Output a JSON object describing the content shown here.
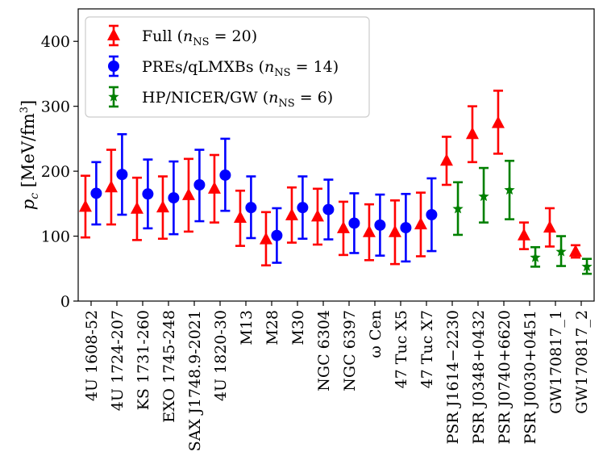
{
  "chart_data": {
    "type": "scatter",
    "ylabel": "p_c [MeV/fm³]",
    "ylabel_parts": {
      "symbol": "p",
      "subscript": "c",
      "unit": " [MeV/fm",
      "sup": "3",
      "close": "]"
    },
    "ylim": [
      0,
      450
    ],
    "yticks": [
      0,
      100,
      200,
      300,
      400
    ],
    "categories": [
      "4U 1608-52",
      "4U 1724-207",
      "KS 1731-260",
      "EXO 1745-248",
      "SAX J1748.9-2021",
      "4U 1820-30",
      "M13",
      "M28",
      "M30",
      "NGC 6304",
      "NGC 6397",
      "ω Cen",
      "47 Tuc X5",
      "47 Tuc X7",
      "PSR J1614−2230",
      "PSR J0348+0432",
      "PSR J0740+6620",
      "PSR J0030+0451",
      "GW170817_1",
      "GW170817_2"
    ],
    "legend_position": "upper left",
    "series": [
      {
        "name": "Full (n_NS = 20)",
        "legend": {
          "main": "Full (",
          "italic": "n",
          "sub": "NS",
          "rest": " = 20)"
        },
        "color": "#ff0000",
        "marker": "triangle",
        "offset": -0.22,
        "points": [
          {
            "i": 0,
            "y": 145,
            "lo": 98,
            "hi": 193
          },
          {
            "i": 1,
            "y": 175,
            "lo": 118,
            "hi": 233
          },
          {
            "i": 2,
            "y": 142,
            "lo": 94,
            "hi": 190
          },
          {
            "i": 3,
            "y": 144,
            "lo": 96,
            "hi": 192
          },
          {
            "i": 4,
            "y": 163,
            "lo": 107,
            "hi": 219
          },
          {
            "i": 5,
            "y": 173,
            "lo": 121,
            "hi": 225
          },
          {
            "i": 6,
            "y": 128,
            "lo": 85,
            "hi": 170
          },
          {
            "i": 7,
            "y": 95,
            "lo": 55,
            "hi": 137
          },
          {
            "i": 8,
            "y": 132,
            "lo": 90,
            "hi": 175
          },
          {
            "i": 9,
            "y": 130,
            "lo": 87,
            "hi": 173
          },
          {
            "i": 10,
            "y": 112,
            "lo": 71,
            "hi": 153
          },
          {
            "i": 11,
            "y": 106,
            "lo": 63,
            "hi": 149
          },
          {
            "i": 12,
            "y": 106,
            "lo": 57,
            "hi": 155
          },
          {
            "i": 13,
            "y": 118,
            "lo": 69,
            "hi": 167
          },
          {
            "i": 14,
            "y": 216,
            "lo": 179,
            "hi": 253
          },
          {
            "i": 15,
            "y": 257,
            "lo": 214,
            "hi": 300
          },
          {
            "i": 16,
            "y": 274,
            "lo": 227,
            "hi": 324
          },
          {
            "i": 17,
            "y": 101,
            "lo": 80,
            "hi": 121
          },
          {
            "i": 18,
            "y": 113,
            "lo": 84,
            "hi": 143
          },
          {
            "i": 19,
            "y": 76,
            "lo": 67,
            "hi": 86
          }
        ]
      },
      {
        "name": "PREs/qLMXBs (n_NS = 14)",
        "legend": {
          "main": "PREs/qLMXBs (",
          "italic": "n",
          "sub": "NS",
          "rest": " = 14)"
        },
        "color": "#0000ff",
        "marker": "circle",
        "offset": 0.2,
        "points": [
          {
            "i": 0,
            "y": 166,
            "lo": 118,
            "hi": 214
          },
          {
            "i": 1,
            "y": 195,
            "lo": 133,
            "hi": 257
          },
          {
            "i": 2,
            "y": 165,
            "lo": 112,
            "hi": 218
          },
          {
            "i": 3,
            "y": 159,
            "lo": 103,
            "hi": 215
          },
          {
            "i": 4,
            "y": 179,
            "lo": 123,
            "hi": 233
          },
          {
            "i": 5,
            "y": 194,
            "lo": 139,
            "hi": 250
          },
          {
            "i": 6,
            "y": 144,
            "lo": 97,
            "hi": 192
          },
          {
            "i": 7,
            "y": 101,
            "lo": 59,
            "hi": 143
          },
          {
            "i": 8,
            "y": 144,
            "lo": 96,
            "hi": 192
          },
          {
            "i": 9,
            "y": 141,
            "lo": 95,
            "hi": 187
          },
          {
            "i": 10,
            "y": 120,
            "lo": 74,
            "hi": 166
          },
          {
            "i": 11,
            "y": 117,
            "lo": 70,
            "hi": 164
          },
          {
            "i": 12,
            "y": 113,
            "lo": 61,
            "hi": 165
          },
          {
            "i": 13,
            "y": 133,
            "lo": 77,
            "hi": 189
          }
        ]
      },
      {
        "name": "HP/NICER/GW (n_NS = 6)",
        "legend": {
          "main": "HP/NICER/GW (",
          "italic": "n",
          "sub": "NS",
          "rest": " = 6)"
        },
        "color": "#008000",
        "marker": "star",
        "offset": 0.22,
        "points": [
          {
            "i": 14,
            "y": 142,
            "lo": 102,
            "hi": 183
          },
          {
            "i": 15,
            "y": 161,
            "lo": 121,
            "hi": 205
          },
          {
            "i": 16,
            "y": 171,
            "lo": 126,
            "hi": 216
          },
          {
            "i": 17,
            "y": 67,
            "lo": 53,
            "hi": 83
          },
          {
            "i": 18,
            "y": 76,
            "lo": 54,
            "hi": 100
          },
          {
            "i": 19,
            "y": 53,
            "lo": 42,
            "hi": 65
          }
        ]
      }
    ]
  }
}
